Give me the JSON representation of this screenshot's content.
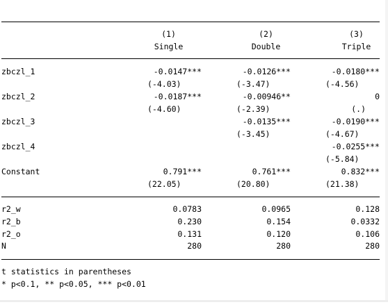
{
  "table": {
    "col_numbers": [
      "(1)",
      "(2)",
      "(3)"
    ],
    "col_names": [
      "Single",
      "Double",
      "Triple"
    ],
    "rows": [
      {
        "label": "zbczl_1",
        "coef": [
          "-0.0147***",
          "-0.0126***",
          "-0.0180***"
        ],
        "t": [
          "(-4.03)",
          "(-3.47)",
          "(-4.56)"
        ]
      },
      {
        "label": "zbczl_2",
        "coef": [
          "-0.0187***",
          "-0.00946**",
          "0"
        ],
        "t": [
          "(-4.60)",
          "(-2.39)",
          "(.)"
        ]
      },
      {
        "label": "zbczl_3",
        "coef": [
          "",
          "-0.0135***",
          "-0.0190***"
        ],
        "t": [
          "",
          "(-3.45)",
          "(-4.67)"
        ]
      },
      {
        "label": "zbczl_4",
        "coef": [
          "",
          "",
          "-0.0255***"
        ],
        "t": [
          "",
          "",
          "(-5.84)"
        ]
      },
      {
        "label": "Constant",
        "coef": [
          "0.791***",
          "0.761***",
          "0.832***"
        ],
        "t": [
          "(22.05)",
          "(20.80)",
          "(21.38)"
        ]
      }
    ],
    "stats": [
      {
        "label": "r2_w",
        "values": [
          "0.0783",
          "0.0965",
          "0.128"
        ]
      },
      {
        "label": "r2_b",
        "values": [
          "0.230",
          "0.154",
          "0.0332"
        ]
      },
      {
        "label": "r2_o",
        "values": [
          "0.131",
          "0.120",
          "0.106"
        ]
      },
      {
        "label": "N",
        "values": [
          "280",
          "280",
          "280"
        ]
      }
    ]
  },
  "notes": [
    "t statistics in parentheses",
    "* p<0.1, ** p<0.05, *** p<0.01"
  ]
}
